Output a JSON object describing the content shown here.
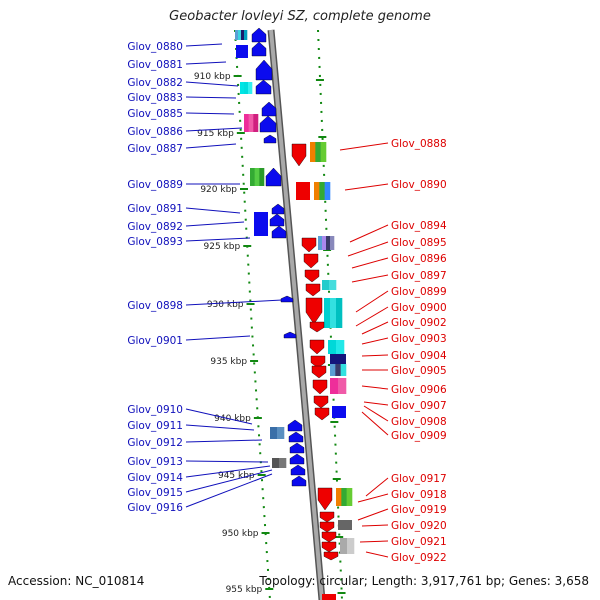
{
  "title": "Geobacter lovleyi SZ, complete genome",
  "accession": "Accession: NC_010814",
  "topology": "Topology: circular; Length: 3,917,761 bp; Genes: 3,658",
  "colors": {
    "backbone": "#8a8a8a",
    "ruler": "#118811",
    "forward_label": "#1010bb",
    "forward_gene": "#0b0bee",
    "reverse_label": "#dd0000",
    "reverse_gene": "#ee0000"
  },
  "ticks": [
    "910 kbp",
    "915 kbp",
    "920 kbp",
    "925 kbp",
    "930 kbp",
    "935 kbp",
    "940 kbp",
    "945 kbp",
    "950 kbp",
    "955 kbp"
  ],
  "left_labels": [
    "Glov_0880",
    "Glov_0881",
    "Glov_0882",
    "Glov_0883",
    "Glov_0885",
    "Glov_0886",
    "Glov_0887",
    "Glov_0889",
    "Glov_0891",
    "Glov_0892",
    "Glov_0893",
    "Glov_0898",
    "Glov_0901",
    "Glov_0910",
    "Glov_0911",
    "Glov_0912",
    "Glov_0913",
    "Glov_0914",
    "Glov_0915",
    "Glov_0916"
  ],
  "right_labels": [
    "Glov_0888",
    "Glov_0890",
    "Glov_0894",
    "Glov_0895",
    "Glov_0896",
    "Glov_0897",
    "Glov_0899",
    "Glov_0900",
    "Glov_0902",
    "Glov_0903",
    "Glov_0904",
    "Glov_0905",
    "Glov_0906",
    "Glov_0907",
    "Glov_0908",
    "Glov_0909",
    "Glov_0917",
    "Glov_0918",
    "Glov_0919",
    "Glov_0920",
    "Glov_0921",
    "Glov_0922"
  ]
}
